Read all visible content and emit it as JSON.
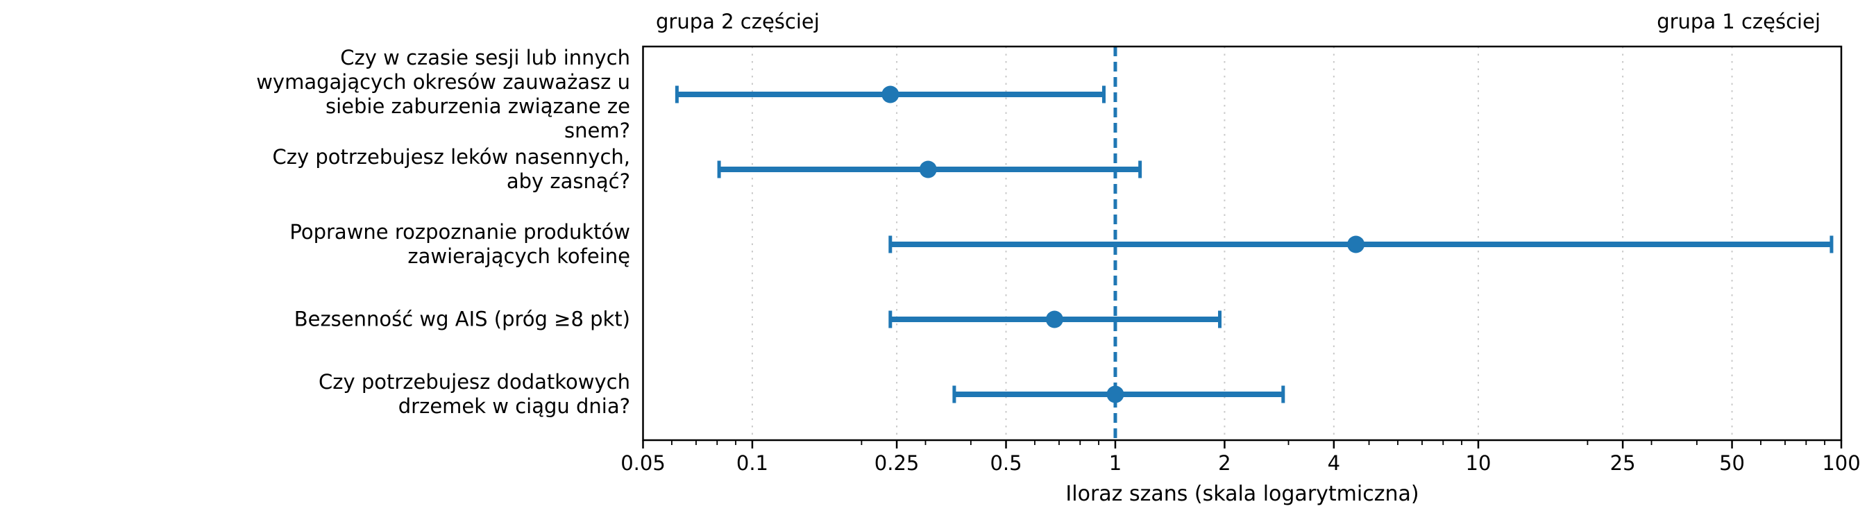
{
  "figure": {
    "background": "#ffffff"
  },
  "chart_data": {
    "type": "scatter",
    "subtype": "forest-plot-errorbar",
    "title": "",
    "xlabel": "Iloraz szans (skala logarytmiczna)",
    "x_scale": "log",
    "xlim": [
      0.05,
      100
    ],
    "x_ticks": [
      0.05,
      0.1,
      0.25,
      0.5,
      1,
      2,
      4,
      10,
      25,
      50,
      100
    ],
    "x_tick_labels": [
      "0.05",
      "0.1",
      "0.25",
      "0.5",
      "1",
      "2",
      "4",
      "10",
      "25",
      "50",
      "100"
    ],
    "grid": "major-x dotted",
    "legend": "none",
    "annotation_left": "grupa 2 częściej",
    "annotation_right": "grupa 1 częściej",
    "reference_line": {
      "x": 1,
      "style": "dashed",
      "color": "#1f77b4"
    },
    "rows": [
      {
        "label_lines": [
          "Czy w czasie sesji lub innych",
          "wymagających okresów zauważasz u",
          "siebie zaburzenia związane ze",
          "snem?"
        ],
        "or": 0.24,
        "ci_low": 0.062,
        "ci_high": 0.93
      },
      {
        "label_lines": [
          "Czy potrzebujesz leków nasennych,",
          "aby zasnąć?"
        ],
        "or": 0.305,
        "ci_low": 0.081,
        "ci_high": 1.17
      },
      {
        "label_lines": [
          "Poprawne rozpoznanie produktów",
          "zawierających kofeinę"
        ],
        "or": 4.6,
        "ci_low": 0.24,
        "ci_high": 94
      },
      {
        "label_lines": [
          "Bezsenność wg AIS (próg ≥8 pkt)"
        ],
        "or": 0.68,
        "ci_low": 0.24,
        "ci_high": 1.94
      },
      {
        "label_lines": [
          "Czy potrzebujesz dodatkowych",
          "drzemek w ciągu dnia?"
        ],
        "or": 1.0,
        "ci_low": 0.36,
        "ci_high": 2.9
      }
    ]
  },
  "colors": {
    "accent": "#1f77b4",
    "grid": "#c9c9c9",
    "spine": "#000000",
    "text": "#000000"
  }
}
